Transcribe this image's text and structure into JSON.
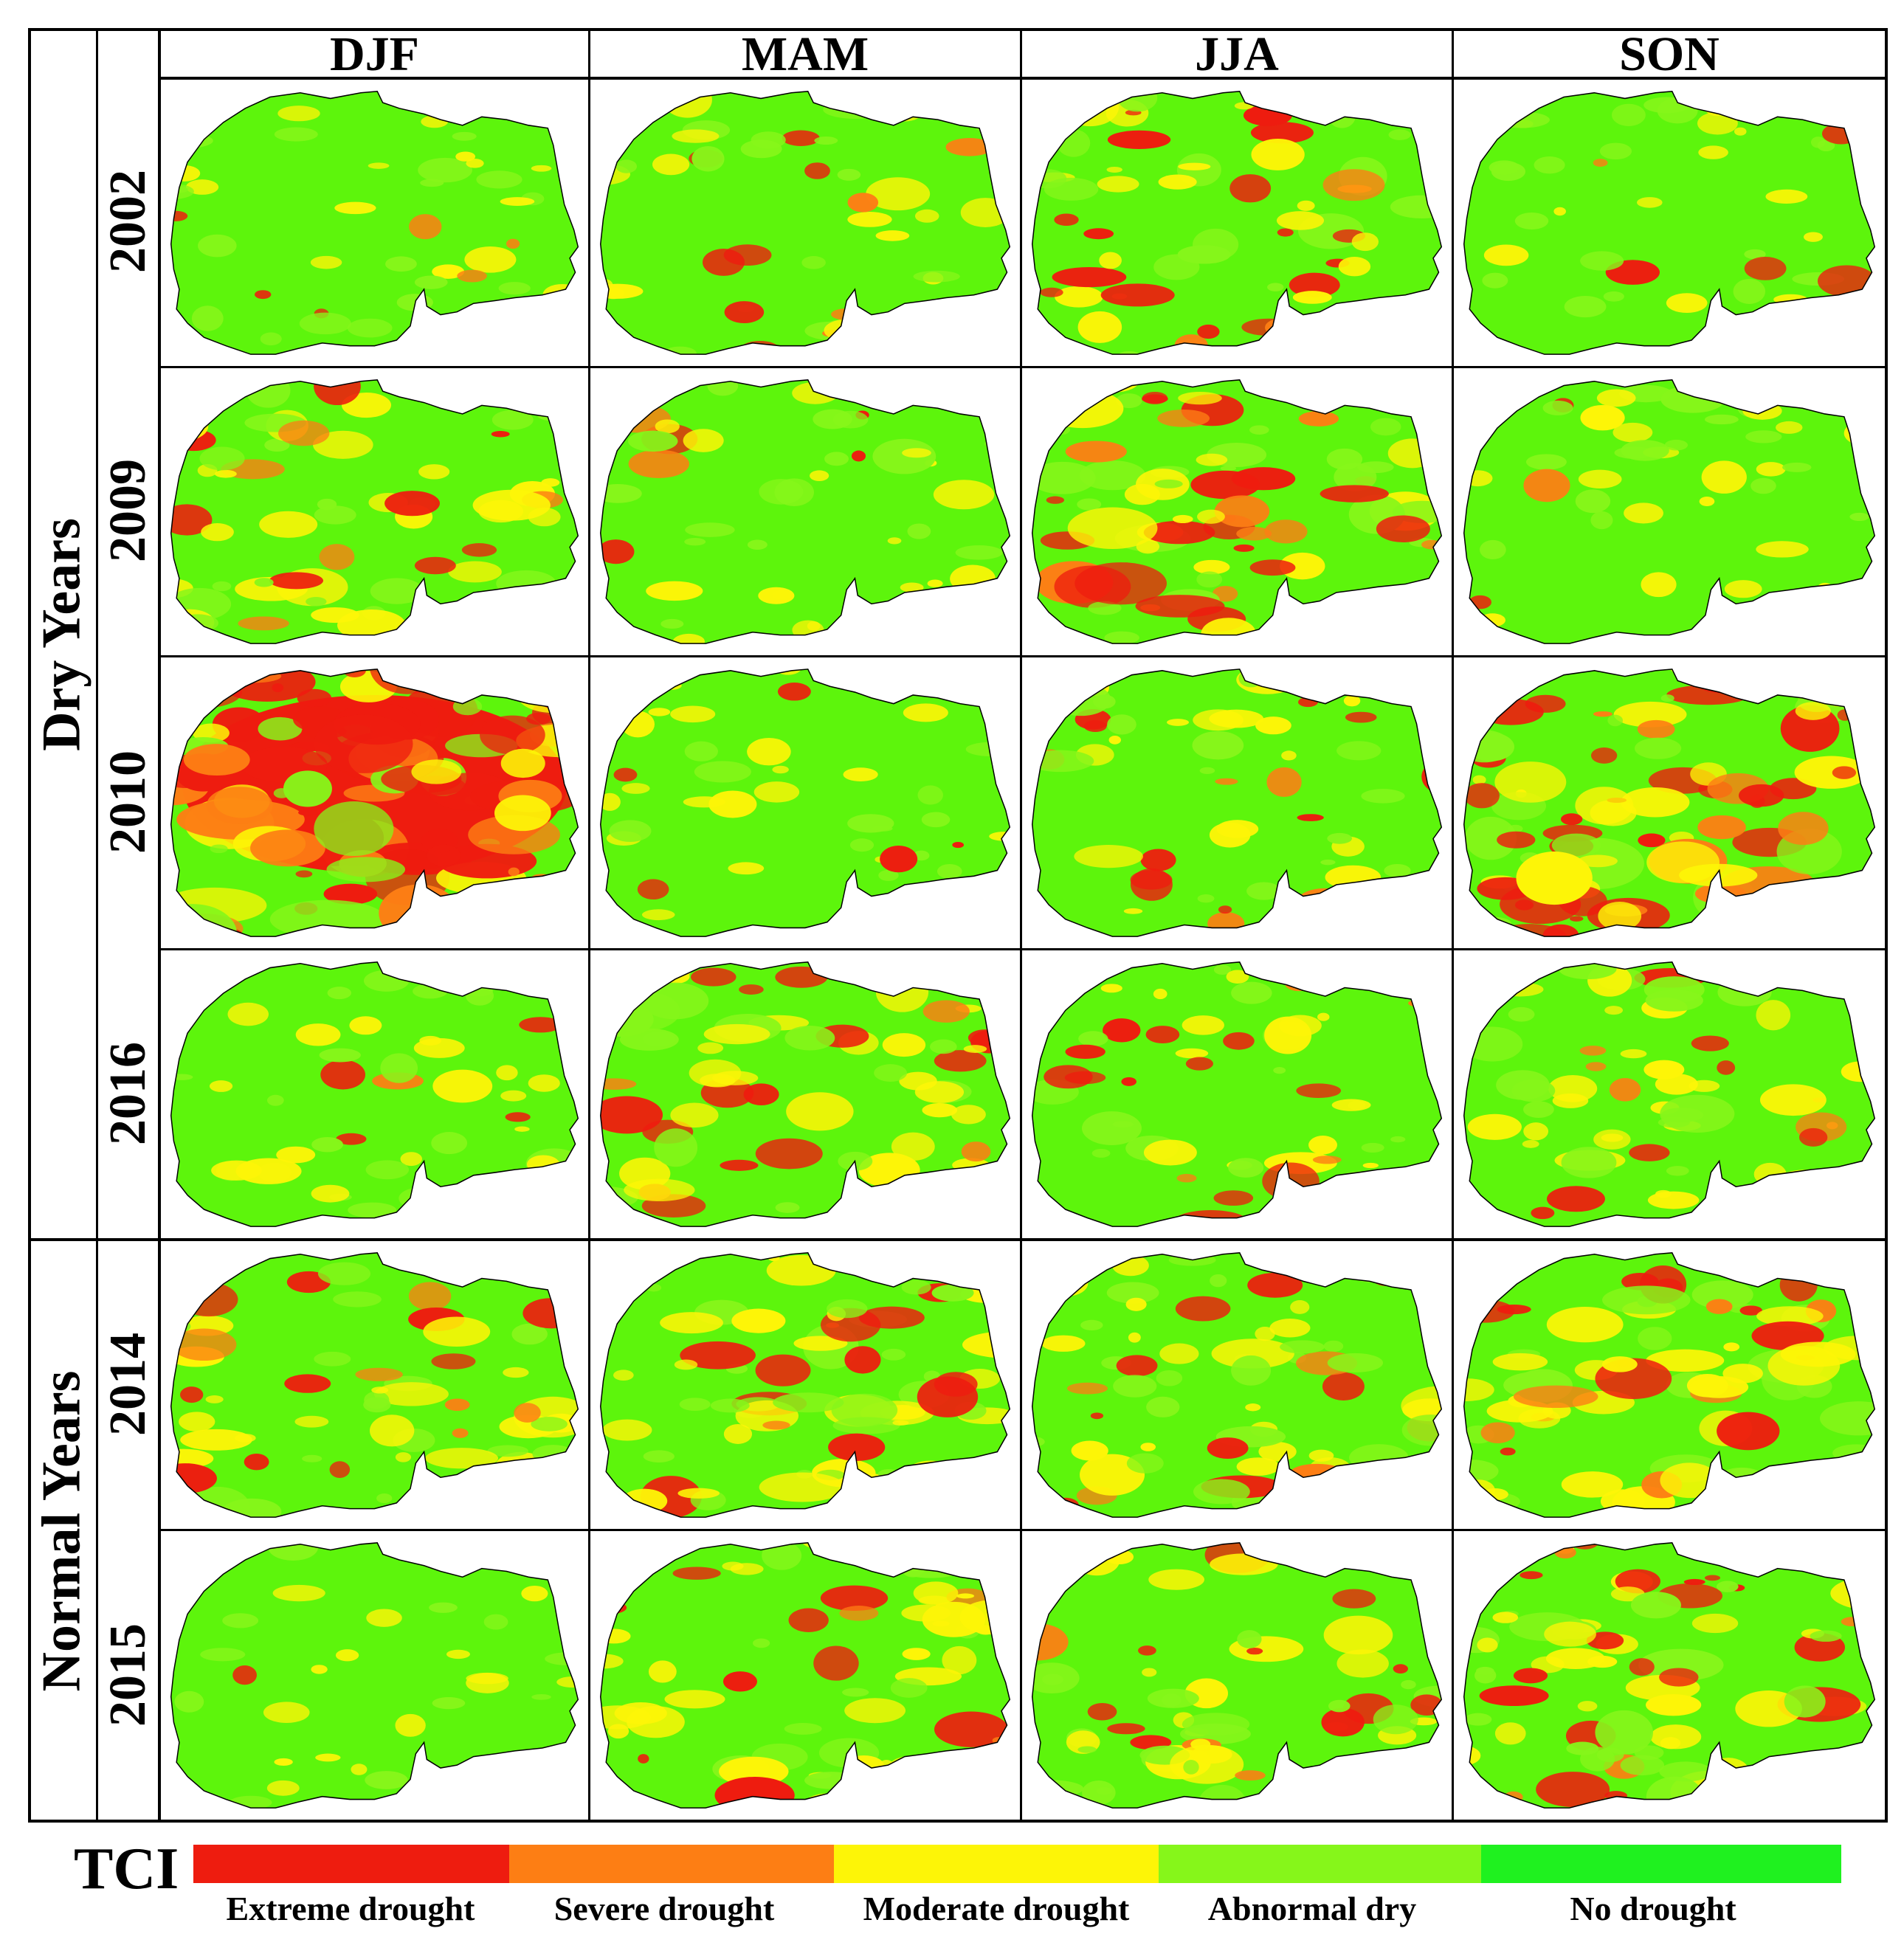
{
  "figure": {
    "seasons": [
      "DJF",
      "MAM",
      "JJA",
      "SON"
    ],
    "groups": [
      {
        "label": "Dry Years",
        "years": [
          "2002",
          "2009",
          "2010",
          "2016"
        ]
      },
      {
        "label": "Normal Years",
        "years": [
          "2014",
          "2015"
        ]
      }
    ],
    "maps": [
      [
        {
          "drought_level": 0.12,
          "seed": 11
        },
        {
          "drought_level": 0.22,
          "seed": 12
        },
        {
          "drought_level": 0.42,
          "seed": 13
        },
        {
          "drought_level": 0.15,
          "seed": 14
        }
      ],
      [
        {
          "drought_level": 0.35,
          "seed": 21
        },
        {
          "drought_level": 0.18,
          "seed": 22
        },
        {
          "drought_level": 0.5,
          "seed": 23
        },
        {
          "drought_level": 0.18,
          "seed": 24
        }
      ],
      [
        {
          "drought_level": 0.92,
          "seed": 31
        },
        {
          "drought_level": 0.12,
          "seed": 32
        },
        {
          "drought_level": 0.28,
          "seed": 33
        },
        {
          "drought_level": 0.62,
          "seed": 34
        }
      ],
      [
        {
          "drought_level": 0.2,
          "seed": 41
        },
        {
          "drought_level": 0.42,
          "seed": 42
        },
        {
          "drought_level": 0.32,
          "seed": 43
        },
        {
          "drought_level": 0.32,
          "seed": 44
        }
      ],
      [
        {
          "drought_level": 0.35,
          "seed": 51
        },
        {
          "drought_level": 0.45,
          "seed": 52
        },
        {
          "drought_level": 0.38,
          "seed": 53
        },
        {
          "drought_level": 0.5,
          "seed": 54
        }
      ],
      [
        {
          "drought_level": 0.06,
          "seed": 61
        },
        {
          "drought_level": 0.35,
          "seed": 62
        },
        {
          "drought_level": 0.35,
          "seed": 63
        },
        {
          "drought_level": 0.45,
          "seed": 64
        }
      ]
    ]
  },
  "legend": {
    "title": "TCI",
    "classes": [
      {
        "label": "Extreme drought",
        "color": "#ee1c0f"
      },
      {
        "label": "Severe drought",
        "color": "#fd7e14"
      },
      {
        "label": "Moderate drought",
        "color": "#fdf507"
      },
      {
        "label": "Abnormal dry",
        "color": "#86f61a"
      },
      {
        "label": "No drought",
        "color": "#1ff11f"
      }
    ]
  },
  "colors": {
    "land": "#5df50c",
    "border": "#000000"
  }
}
